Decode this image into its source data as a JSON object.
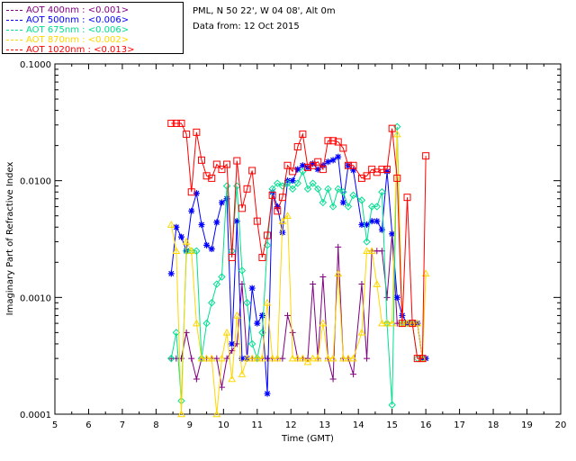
{
  "legend": {
    "items": [
      {
        "label": "AOT  400nm : <0.001>",
        "color": "#800080"
      },
      {
        "label": "AOT  500nm : <0.006>",
        "color": "#0000ff"
      },
      {
        "label": "AOT  675nm : <0.006>",
        "color": "#00e090"
      },
      {
        "label": "AOT  870nm : <0.002>",
        "color": "#ffd700"
      },
      {
        "label": "AOT 1020nm : <0.013>",
        "color": "#ff0000"
      }
    ]
  },
  "info": {
    "site": "PML, N 50 22', W 04 08', Alt 0m",
    "date": "Data from: 12 Oct 2015"
  },
  "chart_data": {
    "type": "line",
    "xlabel": "Time (GMT)",
    "ylabel": "Imaginary Part of Refractive Index",
    "xlim": [
      5,
      20
    ],
    "ylim": [
      0.0001,
      0.1
    ],
    "yscale": "log",
    "xticks": [
      "5",
      "6",
      "7",
      "8",
      "9",
      "10",
      "11",
      "12",
      "13",
      "14",
      "15",
      "16",
      "17",
      "18",
      "19",
      "20"
    ],
    "yticks": [
      "0.1000",
      "0.0100",
      "0.0010",
      "0.0001"
    ],
    "series": [
      {
        "name": "AOT  400nm : <0.001>",
        "color": "#800080",
        "marker": "plus",
        "x": [
          8.45,
          8.6,
          8.75,
          8.9,
          9.05,
          9.2,
          9.35,
          9.5,
          9.65,
          9.8,
          9.95,
          10.1,
          10.25,
          10.4,
          10.55,
          10.7,
          10.85,
          11.0,
          11.15,
          11.3,
          11.45,
          11.6,
          11.75,
          11.9,
          12.05,
          12.2,
          12.35,
          12.5,
          12.65,
          12.8,
          12.95,
          13.1,
          13.25,
          13.4,
          13.55,
          13.7,
          13.85,
          14.1,
          14.25,
          14.4,
          14.55,
          14.7,
          14.85,
          15.0,
          15.15,
          15.3,
          15.45,
          15.6,
          15.75,
          15.9
        ],
        "y": [
          0.0003,
          0.0003,
          0.0003,
          0.0005,
          0.0003,
          0.0002,
          0.0003,
          0.0003,
          0.0003,
          0.0003,
          0.00017,
          0.0003,
          0.00035,
          0.0004,
          0.0013,
          0.0003,
          0.0003,
          0.0003,
          0.0003,
          0.0003,
          0.0003,
          0.0003,
          0.0003,
          0.0007,
          0.0005,
          0.0003,
          0.0003,
          0.0003,
          0.0013,
          0.0003,
          0.0015,
          0.0003,
          0.0002,
          0.0027,
          0.0003,
          0.0003,
          0.00022,
          0.0013,
          0.0003,
          0.0025,
          0.0025,
          0.0025,
          0.001,
          0.0035,
          0.0006,
          0.0006,
          0.0006,
          0.0006,
          0.0006,
          0.0003
        ]
      },
      {
        "name": "AOT  500nm : <0.006>",
        "color": "#0000ff",
        "marker": "star",
        "x": [
          8.45,
          8.6,
          8.75,
          8.9,
          9.05,
          9.2,
          9.35,
          9.5,
          9.65,
          9.8,
          9.95,
          10.1,
          10.25,
          10.4,
          10.55,
          10.7,
          10.85,
          11.0,
          11.15,
          11.3,
          11.45,
          11.6,
          11.75,
          11.9,
          12.05,
          12.2,
          12.35,
          12.5,
          12.65,
          12.8,
          12.95,
          13.1,
          13.25,
          13.4,
          13.55,
          13.7,
          13.85,
          14.1,
          14.25,
          14.4,
          14.55,
          14.7,
          14.85,
          15.0,
          15.15,
          15.3,
          15.45,
          15.6,
          15.75,
          15.9,
          16.0
        ],
        "y": [
          0.0016,
          0.004,
          0.0033,
          0.0025,
          0.0055,
          0.0078,
          0.0042,
          0.0028,
          0.0026,
          0.0044,
          0.0065,
          0.007,
          0.0004,
          0.0045,
          0.0003,
          0.0003,
          0.0012,
          0.0006,
          0.0007,
          0.00015,
          0.008,
          0.006,
          0.0036,
          0.01,
          0.01,
          0.0125,
          0.0135,
          0.013,
          0.014,
          0.0125,
          0.0135,
          0.0145,
          0.015,
          0.016,
          0.0065,
          0.0135,
          0.0123,
          0.0042,
          0.0042,
          0.0045,
          0.0045,
          0.0038,
          0.012,
          0.0035,
          0.001,
          0.0007,
          0.0006,
          0.0006,
          0.0006,
          0.0003,
          0.0003
        ]
      },
      {
        "name": "AOT  675nm : <0.006>",
        "color": "#00e090",
        "marker": "diamond",
        "x": [
          8.45,
          8.6,
          8.75,
          8.9,
          9.05,
          9.2,
          9.35,
          9.5,
          9.65,
          9.8,
          9.95,
          10.1,
          10.25,
          10.4,
          10.55,
          10.7,
          10.85,
          11.0,
          11.15,
          11.3,
          11.45,
          11.6,
          11.75,
          11.9,
          12.05,
          12.2,
          12.35,
          12.5,
          12.65,
          12.8,
          12.95,
          13.1,
          13.25,
          13.4,
          13.55,
          13.7,
          13.85,
          14.1,
          14.25,
          14.4,
          14.55,
          14.7,
          14.85,
          15.0,
          15.15,
          15.3,
          15.45,
          15.6,
          15.75,
          15.9
        ],
        "y": [
          0.0003,
          0.0005,
          0.00013,
          0.0025,
          0.0025,
          0.0025,
          0.0003,
          0.0006,
          0.0009,
          0.0013,
          0.0015,
          0.009,
          0.0025,
          0.009,
          0.0017,
          0.0009,
          0.0004,
          0.0003,
          0.0005,
          0.0028,
          0.0085,
          0.0095,
          0.009,
          0.0095,
          0.0085,
          0.0095,
          0.012,
          0.0085,
          0.0095,
          0.0085,
          0.0065,
          0.0085,
          0.006,
          0.0085,
          0.008,
          0.006,
          0.0075,
          0.0068,
          0.003,
          0.006,
          0.006,
          0.008,
          0.0006,
          0.00012,
          0.029,
          0.0006,
          0.0006,
          0.0006,
          0.0003,
          0.0003
        ]
      },
      {
        "name": "AOT  870nm : <0.002>",
        "color": "#ffd700",
        "marker": "triangle",
        "x": [
          8.45,
          8.6,
          8.75,
          8.9,
          9.05,
          9.2,
          9.35,
          9.5,
          9.65,
          9.8,
          9.95,
          10.1,
          10.25,
          10.4,
          10.55,
          10.7,
          10.85,
          11.0,
          11.15,
          11.3,
          11.45,
          11.6,
          11.75,
          11.9,
          12.05,
          12.2,
          12.35,
          12.5,
          12.65,
          12.8,
          12.95,
          13.1,
          13.25,
          13.4,
          13.55,
          13.7,
          13.85,
          14.1,
          14.25,
          14.4,
          14.55,
          14.7,
          14.85,
          15.0,
          15.15,
          15.3,
          15.45,
          15.6,
          15.75,
          15.9,
          16.0
        ],
        "y": [
          0.0042,
          0.0025,
          0.0001,
          0.003,
          0.0025,
          0.0006,
          0.0003,
          0.0003,
          0.0003,
          0.0001,
          0.0003,
          0.0005,
          0.0002,
          0.0007,
          0.00022,
          0.0003,
          0.0003,
          0.0003,
          0.0003,
          0.0009,
          0.0003,
          0.0003,
          0.0045,
          0.005,
          0.0003,
          0.0003,
          0.0003,
          0.00028,
          0.0003,
          0.0003,
          0.0006,
          0.0003,
          0.0003,
          0.0016,
          0.0003,
          0.0003,
          0.0003,
          0.0005,
          0.0025,
          0.0025,
          0.0013,
          0.0006,
          0.0006,
          0.0006,
          0.025,
          0.0006,
          0.0006,
          0.0006,
          0.0006,
          0.0003,
          0.0016
        ]
      },
      {
        "name": "AOT 1020nm : <0.013>",
        "color": "#ff0000",
        "marker": "square",
        "x": [
          8.45,
          8.6,
          8.75,
          8.9,
          9.05,
          9.2,
          9.35,
          9.5,
          9.65,
          9.8,
          9.95,
          10.1,
          10.25,
          10.4,
          10.55,
          10.7,
          10.85,
          11.0,
          11.15,
          11.3,
          11.45,
          11.6,
          11.75,
          11.9,
          12.05,
          12.2,
          12.35,
          12.5,
          12.65,
          12.8,
          12.95,
          13.1,
          13.25,
          13.4,
          13.55,
          13.7,
          13.85,
          14.1,
          14.25,
          14.4,
          14.55,
          14.7,
          14.85,
          15.0,
          15.15,
          15.3,
          15.45,
          15.6,
          15.75,
          15.9,
          16.0
        ],
        "y": [
          0.031,
          0.031,
          0.031,
          0.025,
          0.008,
          0.026,
          0.015,
          0.011,
          0.0105,
          0.0138,
          0.0125,
          0.0138,
          0.0022,
          0.0148,
          0.0058,
          0.0085,
          0.0122,
          0.0045,
          0.0022,
          0.0034,
          0.0075,
          0.0055,
          0.0072,
          0.0135,
          0.012,
          0.0195,
          0.025,
          0.013,
          0.0135,
          0.0145,
          0.0125,
          0.022,
          0.022,
          0.0215,
          0.019,
          0.0135,
          0.0135,
          0.0105,
          0.011,
          0.0125,
          0.0118,
          0.0125,
          0.0125,
          0.028,
          0.0105,
          0.0006,
          0.0072,
          0.0006,
          0.0003,
          0.0003,
          0.0163
        ]
      }
    ]
  }
}
